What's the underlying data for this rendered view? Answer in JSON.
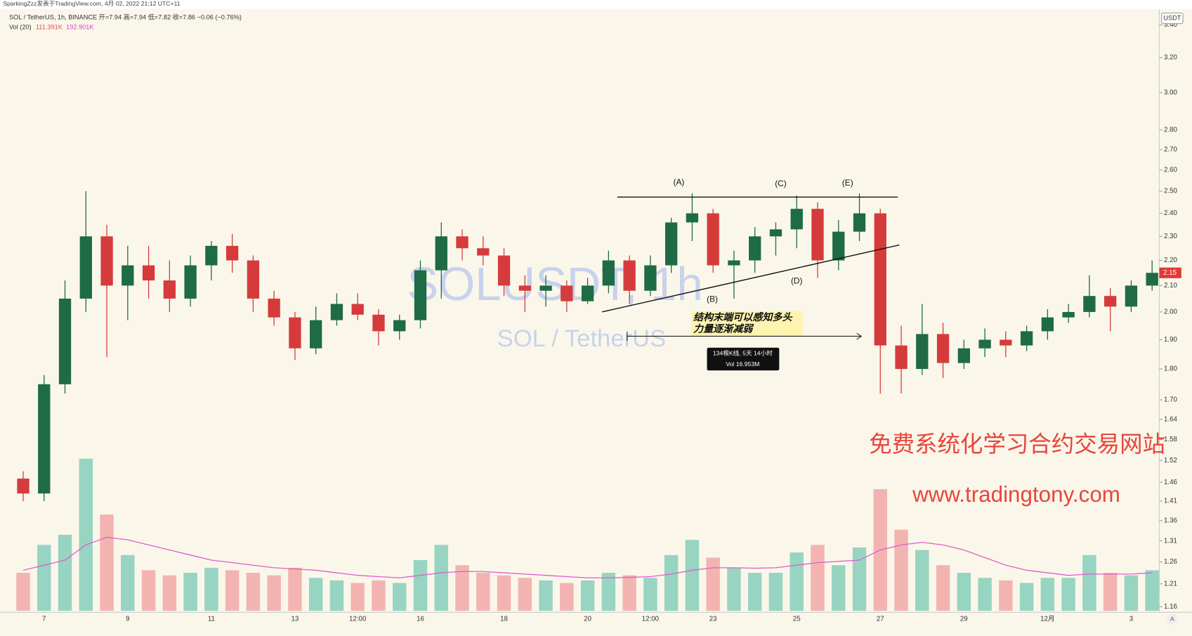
{
  "header": "SparkingZzz发表于TradingView.com,  4月 02, 2022 21:12 UTC+11",
  "chart_data": {
    "type": "candlestick",
    "legend": "SOL / TetherUS, 1h, BINANCE  开=7.94  高=7.94  低=7.82  收=7.86  −0.06 (−0.76%)",
    "volume_legend": {
      "name": "Vol (20)",
      "values": [
        "111.391K",
        "192.901K"
      ]
    },
    "currency": "USDT",
    "auto_button": "A",
    "watermark": [
      "SOLUSDT, 1h",
      "SOL / TetherUS"
    ],
    "log_scale": true,
    "up_color": "#1e6b45",
    "down_color": "#d63b3b",
    "volume_up_color": "#7fcbb8",
    "volume_down_color": "#f1a3a3",
    "ma_color": "#e25cc9",
    "categories": [
      null,
      "7",
      null,
      null,
      null,
      "9",
      null,
      null,
      null,
      "11",
      null,
      null,
      null,
      "13",
      null,
      null,
      "12:00",
      null,
      null,
      "16",
      null,
      null,
      null,
      "18",
      null,
      null,
      null,
      "20",
      null,
      null,
      "12:00",
      null,
      null,
      "23",
      null,
      null,
      null,
      "25",
      null,
      null,
      null,
      "27",
      null,
      null,
      null,
      "29",
      null,
      null,
      null,
      "12月",
      null,
      null,
      null,
      "3",
      null
    ],
    "open": [
      1.47,
      1.43,
      1.75,
      2.05,
      2.3,
      2.1,
      2.18,
      2.12,
      2.05,
      2.18,
      2.26,
      2.2,
      2.05,
      1.98,
      1.87,
      1.97,
      2.03,
      1.99,
      1.93,
      1.97,
      2.16,
      2.3,
      2.25,
      2.22,
      2.1,
      2.08,
      2.1,
      2.04,
      2.1,
      2.2,
      2.08,
      2.18,
      2.36,
      2.4,
      2.18,
      2.2,
      2.3,
      2.33,
      2.42,
      2.2,
      2.32,
      2.4,
      1.88,
      1.8,
      1.92,
      1.82,
      1.87,
      1.9,
      1.88,
      1.93,
      1.98,
      2.0,
      2.06,
      2.02,
      2.1
    ],
    "high": [
      1.49,
      1.78,
      2.12,
      2.5,
      2.35,
      2.26,
      2.26,
      2.2,
      2.22,
      2.28,
      2.31,
      2.22,
      2.08,
      2.0,
      2.02,
      2.07,
      2.07,
      2.01,
      1.99,
      2.2,
      2.36,
      2.33,
      2.3,
      2.25,
      2.14,
      2.14,
      2.12,
      2.13,
      2.24,
      2.22,
      2.22,
      2.38,
      2.49,
      2.42,
      2.24,
      2.34,
      2.36,
      2.48,
      2.45,
      2.37,
      2.49,
      2.42,
      1.95,
      2.03,
      1.96,
      1.9,
      1.94,
      1.93,
      1.95,
      2.01,
      2.03,
      2.14,
      2.09,
      2.12,
      2.2
    ],
    "low": [
      1.41,
      1.41,
      1.72,
      2.0,
      1.84,
      1.97,
      2.05,
      2.0,
      2.02,
      2.12,
      2.15,
      2.0,
      1.95,
      1.83,
      1.85,
      1.95,
      1.97,
      1.88,
      1.9,
      1.94,
      2.05,
      2.2,
      2.18,
      2.06,
      2.0,
      2.02,
      2.0,
      2.03,
      2.07,
      2.03,
      2.06,
      2.15,
      2.28,
      2.15,
      2.05,
      2.15,
      2.22,
      2.25,
      2.13,
      2.16,
      2.28,
      1.72,
      1.72,
      1.78,
      1.77,
      1.8,
      1.84,
      1.84,
      1.86,
      1.9,
      1.96,
      1.98,
      1.93,
      2.0,
      2.08
    ],
    "close": [
      1.43,
      1.75,
      2.05,
      2.3,
      2.1,
      2.18,
      2.12,
      2.05,
      2.18,
      2.26,
      2.2,
      2.05,
      1.98,
      1.87,
      1.97,
      2.03,
      1.99,
      1.93,
      1.97,
      2.16,
      2.3,
      2.25,
      2.22,
      2.1,
      2.08,
      2.1,
      2.04,
      2.1,
      2.2,
      2.08,
      2.18,
      2.36,
      2.4,
      2.18,
      2.2,
      2.3,
      2.33,
      2.42,
      2.2,
      2.32,
      2.4,
      1.88,
      1.8,
      1.92,
      1.82,
      1.87,
      1.9,
      1.88,
      1.93,
      1.98,
      2.0,
      2.06,
      2.02,
      2.1,
      2.15
    ],
    "volume": [
      150,
      260,
      300,
      600,
      380,
      220,
      160,
      140,
      150,
      170,
      160,
      150,
      140,
      170,
      130,
      120,
      110,
      120,
      110,
      200,
      260,
      180,
      150,
      140,
      130,
      120,
      110,
      120,
      150,
      140,
      130,
      220,
      280,
      210,
      170,
      150,
      150,
      230,
      260,
      180,
      250,
      480,
      320,
      240,
      180,
      150,
      130,
      120,
      110,
      130,
      130,
      220,
      150,
      140,
      160
    ],
    "volume_ma": [
      160,
      180,
      200,
      260,
      290,
      280,
      260,
      240,
      220,
      200,
      190,
      180,
      170,
      165,
      160,
      150,
      140,
      135,
      130,
      140,
      150,
      155,
      155,
      150,
      145,
      140,
      135,
      130,
      130,
      132,
      135,
      145,
      160,
      170,
      170,
      168,
      170,
      180,
      190,
      195,
      200,
      240,
      260,
      270,
      260,
      240,
      210,
      180,
      160,
      150,
      140,
      145,
      145,
      145,
      150
    ],
    "ylim": [
      1.148,
      3.49
    ],
    "yticks": [
      {
        "value": 3.4,
        "label": "3.40"
      },
      {
        "value": 3.2,
        "label": "3.20"
      },
      {
        "value": 3.0,
        "label": "3.00"
      },
      {
        "value": 2.8,
        "label": "2.80"
      },
      {
        "value": 2.7,
        "label": "2.70"
      },
      {
        "value": 2.6,
        "label": "2.60"
      },
      {
        "value": 2.5,
        "label": "2.50"
      },
      {
        "value": 2.4,
        "label": "2.40"
      },
      {
        "value": 2.3,
        "label": "2.30"
      },
      {
        "value": 2.2,
        "label": "2.20"
      },
      {
        "value": 2.1,
        "label": "2.10"
      },
      {
        "value": 2.0,
        "label": "2.00"
      },
      {
        "value": 1.9,
        "label": "1.90"
      },
      {
        "value": 1.8,
        "label": "1.80"
      },
      {
        "value": 1.7,
        "label": "1.70"
      },
      1.64,
      1.58,
      1.52,
      1.46,
      1.41,
      1.36,
      1.31,
      1.26,
      1.21,
      1.16
    ],
    "annotations": {
      "wave_labels": [
        "(A)",
        "(B)",
        "(C)",
        "(D)",
        "(E)"
      ],
      "note": [
        "结构末端可以感知多头",
        "力量逐渐减弱"
      ],
      "measure": [
        "134根K线, 5天 14小时",
        "Vol 16.953M"
      ]
    }
  },
  "promo": [
    "免费系统化学习合约交易网站",
    "www.tradingtony.com"
  ]
}
